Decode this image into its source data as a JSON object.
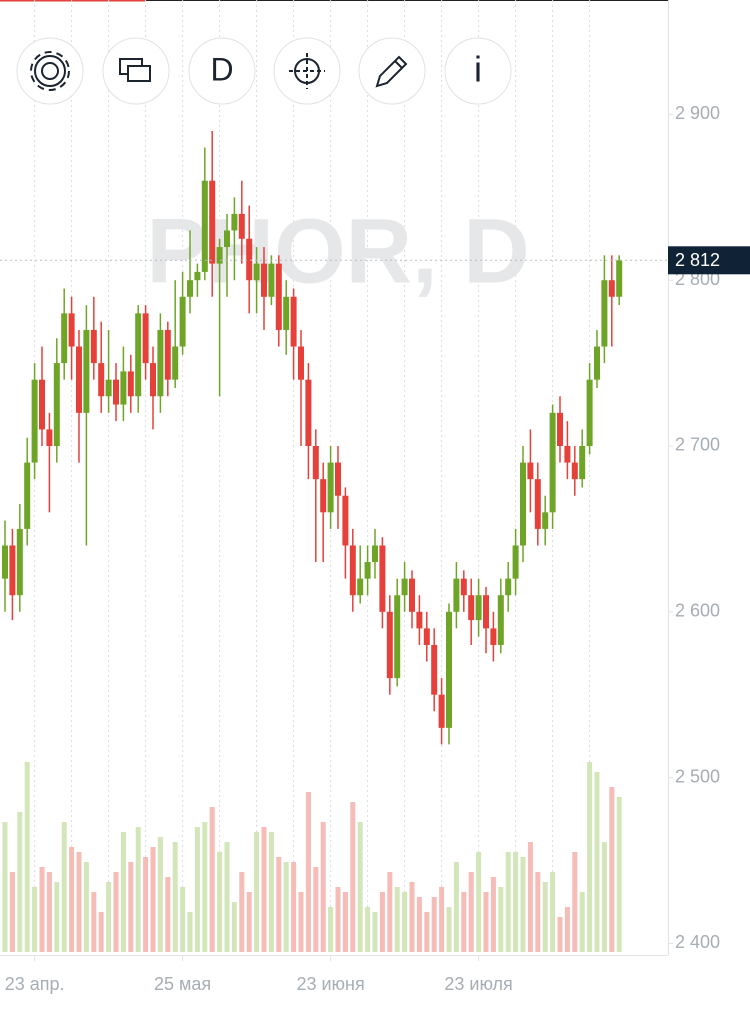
{
  "chart_data": {
    "type": "candlestick",
    "title": "PHOR, D",
    "toolbar": {
      "interval": "D",
      "info": "i"
    },
    "categories": [
      null,
      null,
      null,
      null,
      "23 апр.",
      null,
      null,
      null,
      null,
      null,
      null,
      null,
      null,
      null,
      null,
      null,
      null,
      null,
      null,
      null,
      null,
      null,
      null,
      null,
      "25 мая",
      null,
      null,
      null,
      null,
      null,
      null,
      null,
      null,
      null,
      null,
      null,
      null,
      null,
      null,
      null,
      null,
      null,
      null,
      null,
      "23 июня",
      null,
      null,
      null,
      null,
      null,
      null,
      null,
      null,
      null,
      null,
      null,
      null,
      null,
      null,
      null,
      null,
      null,
      null,
      null,
      "23 июля",
      null,
      null,
      null,
      null,
      null,
      null,
      null,
      null,
      null,
      null,
      null,
      null,
      null,
      null,
      null,
      null,
      null,
      null,
      null
    ],
    "open": [
      2620,
      2640,
      2610,
      2650,
      2690,
      2740,
      2710,
      2700,
      2750,
      2780,
      2760,
      2720,
      2770,
      2750,
      2730,
      2740,
      2725,
      2745,
      2730,
      2780,
      2750,
      2730,
      2770,
      2740,
      2760,
      2790,
      2800,
      2805,
      2860,
      2810,
      2820,
      2830,
      2840,
      2825,
      2800,
      2810,
      2790,
      2810,
      2770,
      2790,
      2760,
      2740,
      2700,
      2680,
      2660,
      2690,
      2670,
      2640,
      2610,
      2620,
      2630,
      2640,
      2600,
      2560,
      2610,
      2620,
      2600,
      2590,
      2580,
      2550,
      2530,
      2600,
      2620,
      2610,
      2595,
      2610,
      2590,
      2580,
      2610,
      2620,
      2640,
      2690,
      2680,
      2650,
      2660,
      2720,
      2700,
      2690,
      2680,
      2700,
      2740,
      2760,
      2800,
      2790
    ],
    "high": [
      2655,
      2650,
      2665,
      2705,
      2750,
      2760,
      2720,
      2765,
      2795,
      2790,
      2770,
      2785,
      2790,
      2775,
      2770,
      2750,
      2760,
      2755,
      2785,
      2785,
      2760,
      2780,
      2775,
      2800,
      2805,
      2830,
      2810,
      2880,
      2890,
      2825,
      2840,
      2850,
      2860,
      2845,
      2820,
      2820,
      2815,
      2815,
      2800,
      2795,
      2770,
      2750,
      2710,
      2690,
      2700,
      2700,
      2675,
      2650,
      2640,
      2640,
      2650,
      2645,
      2610,
      2620,
      2630,
      2625,
      2610,
      2600,
      2590,
      2560,
      2605,
      2630,
      2625,
      2620,
      2620,
      2615,
      2600,
      2620,
      2630,
      2650,
      2700,
      2710,
      2690,
      2670,
      2725,
      2730,
      2715,
      2700,
      2710,
      2750,
      2770,
      2815,
      2815,
      2815
    ],
    "low": [
      2600,
      2595,
      2600,
      2640,
      2680,
      2700,
      2660,
      2690,
      2740,
      2740,
      2690,
      2640,
      2740,
      2720,
      2720,
      2715,
      2715,
      2720,
      2720,
      2740,
      2710,
      2720,
      2730,
      2735,
      2755,
      2780,
      2790,
      2800,
      2790,
      2730,
      2790,
      2800,
      2810,
      2780,
      2780,
      2770,
      2785,
      2760,
      2755,
      2740,
      2700,
      2680,
      2630,
      2630,
      2650,
      2650,
      2620,
      2600,
      2605,
      2610,
      2620,
      2590,
      2550,
      2555,
      2600,
      2590,
      2580,
      2570,
      2540,
      2520,
      2520,
      2590,
      2600,
      2580,
      2585,
      2575,
      2570,
      2575,
      2600,
      2610,
      2630,
      2660,
      2640,
      2640,
      2650,
      2690,
      2680,
      2670,
      2675,
      2695,
      2735,
      2750,
      2760,
      2785
    ],
    "close": [
      2640,
      2610,
      2650,
      2690,
      2740,
      2710,
      2700,
      2750,
      2780,
      2760,
      2720,
      2770,
      2750,
      2730,
      2740,
      2725,
      2745,
      2730,
      2780,
      2750,
      2730,
      2770,
      2740,
      2760,
      2790,
      2800,
      2805,
      2860,
      2810,
      2820,
      2830,
      2840,
      2825,
      2800,
      2810,
      2790,
      2810,
      2770,
      2790,
      2760,
      2740,
      2700,
      2680,
      2660,
      2690,
      2670,
      2640,
      2610,
      2620,
      2630,
      2640,
      2600,
      2560,
      2610,
      2620,
      2600,
      2590,
      2580,
      2550,
      2530,
      2600,
      2620,
      2610,
      2595,
      2610,
      2590,
      2580,
      2610,
      2620,
      2640,
      2690,
      2680,
      2650,
      2660,
      2720,
      2700,
      2690,
      2680,
      2700,
      2740,
      2760,
      2800,
      2790,
      2812
    ],
    "volume": [
      130,
      80,
      140,
      190,
      65,
      85,
      80,
      70,
      130,
      105,
      100,
      90,
      60,
      40,
      70,
      80,
      120,
      90,
      125,
      95,
      105,
      115,
      75,
      110,
      65,
      40,
      125,
      130,
      145,
      100,
      110,
      50,
      80,
      60,
      120,
      125,
      120,
      95,
      90,
      90,
      60,
      160,
      85,
      130,
      45,
      65,
      60,
      150,
      130,
      45,
      40,
      60,
      80,
      65,
      60,
      70,
      55,
      40,
      55,
      65,
      45,
      90,
      60,
      80,
      100,
      60,
      75,
      65,
      100,
      100,
      95,
      110,
      80,
      70,
      80,
      35,
      45,
      100,
      60,
      190,
      180,
      110,
      165,
      155
    ],
    "vlim": [
      0,
      200
    ],
    "ylim": [
      2393,
      2969
    ],
    "yticks": [
      {
        "value": 2400,
        "label": "2 400"
      },
      {
        "value": 2500,
        "label": "2 500"
      },
      {
        "value": 2600,
        "label": "2 600"
      },
      {
        "value": 2700,
        "label": "2 700"
      },
      {
        "value": 2800,
        "label": "2 800"
      },
      {
        "value": 2900,
        "label": "2 900"
      }
    ],
    "last_price": {
      "value": 2812,
      "label": "2 812"
    },
    "up_color": "#6ea527",
    "down_color": "#e5403a",
    "volume_up_color": "#d3e6b9",
    "volume_down_color": "#f6bcb8"
  }
}
